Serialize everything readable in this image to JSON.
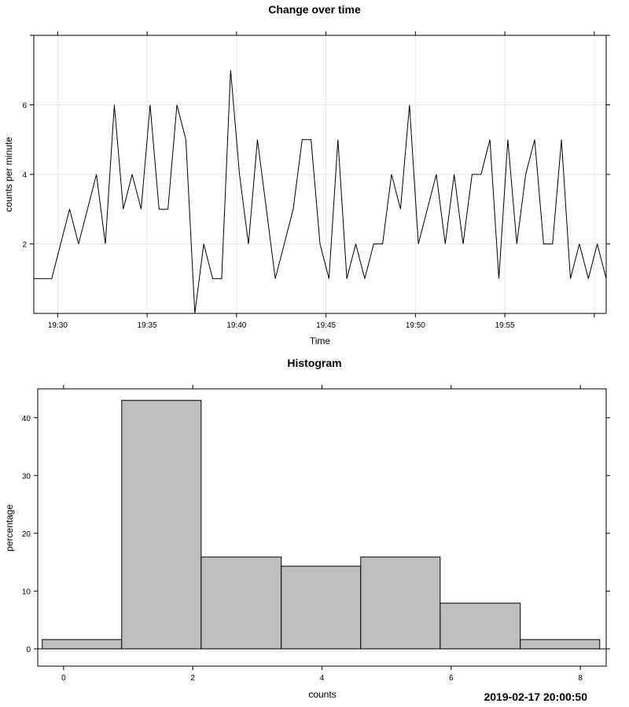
{
  "chart_data": [
    {
      "type": "line",
      "title": "Change over time",
      "xlabel": "Time",
      "ylabel": "counts per minute",
      "x_ticks": [
        "19:30",
        "19:35",
        "19:40",
        "19:45",
        "19:50",
        "19:55"
      ],
      "y_ticks": [
        2,
        4,
        6
      ],
      "ylim": [
        0,
        8
      ],
      "grid": true,
      "x": [
        "19:28:40",
        "19:29:10",
        "19:29:40",
        "19:30:10",
        "19:30:40",
        "19:31:10",
        "19:31:40",
        "19:32:10",
        "19:32:40",
        "19:33:10",
        "19:33:40",
        "19:34:10",
        "19:34:40",
        "19:35:10",
        "19:35:40",
        "19:36:10",
        "19:36:40",
        "19:37:10",
        "19:37:40",
        "19:38:10",
        "19:38:40",
        "19:39:10",
        "19:39:40",
        "19:40:10",
        "19:40:40",
        "19:41:10",
        "19:41:40",
        "19:42:10",
        "19:42:40",
        "19:43:10",
        "19:43:40",
        "19:44:10",
        "19:44:40",
        "19:45:10",
        "19:45:40",
        "19:46:10",
        "19:46:40",
        "19:47:10",
        "19:47:40",
        "19:48:10",
        "19:48:40",
        "19:49:10",
        "19:49:40",
        "19:50:10",
        "19:50:40",
        "19:51:10",
        "19:51:40",
        "19:52:10",
        "19:52:40",
        "19:53:10",
        "19:53:40",
        "19:54:10",
        "19:54:40",
        "19:55:10",
        "19:55:40",
        "19:56:10",
        "19:56:40",
        "19:57:10",
        "19:57:40",
        "19:58:10",
        "19:58:40",
        "19:59:10",
        "19:59:40",
        "20:00:10",
        "20:00:40"
      ],
      "values": [
        1,
        1,
        1,
        2,
        3,
        2,
        3,
        4,
        2,
        6,
        3,
        4,
        3,
        6,
        3,
        3,
        6,
        5,
        0,
        2,
        1,
        1,
        7,
        4,
        2,
        5,
        3,
        1,
        2,
        3,
        5,
        5,
        2,
        1,
        5,
        1,
        2,
        1,
        2,
        2,
        4,
        3,
        6,
        2,
        3,
        4,
        2,
        4,
        2,
        4,
        4,
        5,
        1,
        5,
        2,
        4,
        5,
        2,
        2,
        5,
        1,
        2,
        1,
        2,
        1
      ]
    },
    {
      "type": "bar",
      "title": "Histogram",
      "xlabel": "counts",
      "ylabel": "percentage",
      "x_ticks": [
        0,
        2,
        4,
        6,
        8
      ],
      "y_ticks": [
        0,
        10,
        20,
        30,
        40
      ],
      "xlim": [
        -0.4,
        8.4
      ],
      "ylim": [
        -3,
        45
      ],
      "bin_edges": [
        -0.33,
        0.9,
        2.13,
        3.37,
        4.6,
        5.83,
        7.07,
        8.3
      ],
      "values": [
        1.6,
        43.0,
        15.9,
        14.3,
        15.9,
        7.9,
        1.6
      ],
      "bar_color": "#bebebe"
    }
  ],
  "timestamp": "2019-02-17 20:00:50"
}
